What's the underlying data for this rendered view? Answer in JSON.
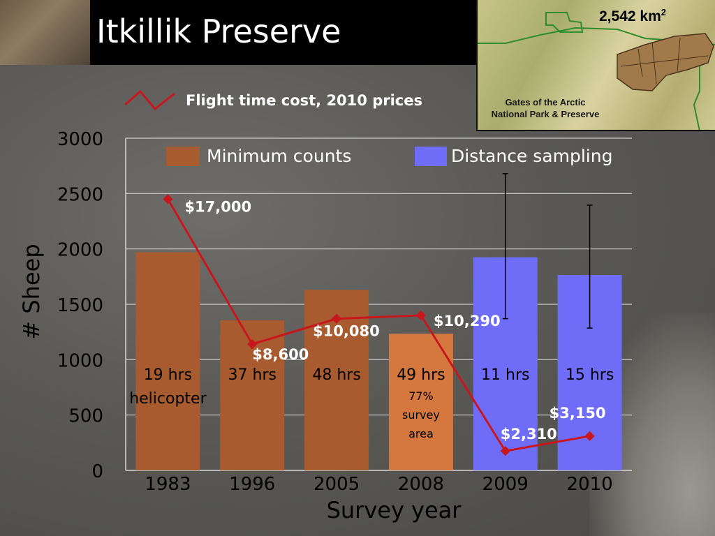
{
  "header": {
    "title": "Itkillik Preserve",
    "map_area_value": "2,542 km",
    "map_area_unit_sup": "2",
    "map_label_line1": "Gates of the Arctic",
    "map_label_line2": "National Park & Preserve"
  },
  "chart_data": {
    "type": "bar",
    "categories": [
      "1983",
      "1996",
      "2005",
      "2008",
      "2009",
      "2010"
    ],
    "xlabel": "Survey year",
    "ylabel": "# Sheep",
    "ylim": [
      0,
      3000
    ],
    "yticks": [
      0,
      500,
      1000,
      1500,
      2000,
      2500,
      3000
    ],
    "grid": true,
    "legend": [
      {
        "label": "Minimum counts",
        "color": "#a85b2e"
      },
      {
        "label": "Distance sampling",
        "color": "#6f6cf7"
      }
    ],
    "bars": [
      {
        "value": 1970,
        "color": "#a85b2e",
        "label_lines": [
          "19 hrs",
          "helicopter"
        ]
      },
      {
        "value": 1355,
        "color": "#a85b2e",
        "label_lines": [
          "37 hrs"
        ]
      },
      {
        "value": 1630,
        "color": "#a85b2e",
        "label_lines": [
          "48 hrs"
        ]
      },
      {
        "value": 1235,
        "color": "#d57840",
        "label_lines": [
          "49 hrs"
        ],
        "sub_lines": [
          "77%",
          "survey",
          "area"
        ]
      },
      {
        "value": 1925,
        "color": "#6f6cf7",
        "label_lines": [
          "11 hrs"
        ],
        "error": [
          1370,
          2680
        ]
      },
      {
        "value": 1765,
        "color": "#6f6cf7",
        "label_lines": [
          "15 hrs"
        ],
        "error": [
          1285,
          2395
        ]
      }
    ],
    "cost_line": {
      "name": "Flight time cost, 2010 prices",
      "color": "#c8161d",
      "values": [
        2450,
        1140,
        1370,
        1400,
        175,
        310
      ],
      "labels": [
        "$17,000",
        "$8,600",
        "$10,080",
        "$10,290",
        "$2,310",
        "$3,150"
      ]
    }
  }
}
